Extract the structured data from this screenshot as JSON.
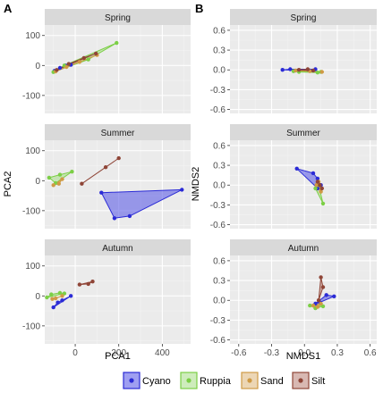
{
  "panel_labels": [
    "A",
    "B"
  ],
  "groups": [
    {
      "name": "Cyano",
      "color": "#2b2bd6",
      "fill": "#5050e6"
    },
    {
      "name": "Ruppia",
      "color": "#7ccf46",
      "fill": "#a6dc85"
    },
    {
      "name": "Sand",
      "color": "#cf9a45",
      "fill": "#ddb478"
    },
    {
      "name": "Silt",
      "color": "#8f4537",
      "fill": "#b87e72"
    }
  ],
  "chart_data": [
    {
      "type": "scatter",
      "panel": "A",
      "xlabel": "PCA1",
      "ylabel": "PCA2",
      "xlim": [
        -140,
        530
      ],
      "ylim": [
        -160,
        135
      ],
      "xticks": [
        0,
        200,
        400
      ],
      "yticks": [
        -100,
        0,
        100
      ],
      "grid": true,
      "facets": [
        {
          "title": "Spring",
          "hulls": [
            {
              "group": "Cyano",
              "points": [
                [
                  -95,
                  -18
                ],
                [
                  -70,
                  -8
                ],
                [
                  -45,
                  0
                ],
                [
                  -20,
                  2
                ]
              ]
            },
            {
              "group": "Ruppia",
              "points": [
                [
                  -100,
                  -22
                ],
                [
                  -50,
                  0
                ],
                [
                  60,
                  20
                ],
                [
                  190,
                  75
                ]
              ]
            },
            {
              "group": "Sand",
              "points": [
                [
                  -90,
                  -20
                ],
                [
                  -40,
                  -5
                ],
                [
                  20,
                  12
                ],
                [
                  100,
                  35
                ]
              ]
            },
            {
              "group": "Silt",
              "points": [
                [
                  -85,
                  -15
                ],
                [
                  -30,
                  5
                ],
                [
                  40,
                  25
                ],
                [
                  95,
                  40
                ]
              ]
            }
          ]
        },
        {
          "title": "Summer",
          "hulls": [
            {
              "group": "Cyano",
              "points": [
                [
                  120,
                  -40
                ],
                [
                  180,
                  -125
                ],
                [
                  250,
                  -118
                ],
                [
                  490,
                  -30
                ]
              ]
            },
            {
              "group": "Ruppia",
              "points": [
                [
                  -120,
                  10
                ],
                [
                  -90,
                  -8
                ],
                [
                  -70,
                  20
                ],
                [
                  -15,
                  30
                ]
              ]
            },
            {
              "group": "Sand",
              "points": [
                [
                  -100,
                  -15
                ],
                [
                  -75,
                  -10
                ],
                [
                  -60,
                  5
                ]
              ]
            },
            {
              "group": "Silt",
              "points": [
                [
                  30,
                  -10
                ],
                [
                  140,
                  45
                ],
                [
                  200,
                  75
                ]
              ]
            }
          ]
        },
        {
          "title": "Autumn",
          "hulls": [
            {
              "group": "Cyano",
              "points": [
                [
                  -100,
                  -38
                ],
                [
                  -80,
                  -22
                ],
                [
                  -20,
                  0
                ],
                [
                  -60,
                  -15
                ]
              ]
            },
            {
              "group": "Ruppia",
              "points": [
                [
                  -130,
                  -5
                ],
                [
                  -110,
                  5
                ],
                [
                  -70,
                  10
                ],
                [
                  -50,
                  8
                ]
              ]
            },
            {
              "group": "Sand",
              "points": [
                [
                  -105,
                  -10
                ],
                [
                  -90,
                  -8
                ],
                [
                  -60,
                  0
                ]
              ]
            },
            {
              "group": "Silt",
              "points": [
                [
                  20,
                  38
                ],
                [
                  60,
                  40
                ],
                [
                  80,
                  48
                ]
              ]
            }
          ]
        }
      ]
    },
    {
      "type": "scatter",
      "panel": "B",
      "xlabel": "NMDS1",
      "ylabel": "NMDS2",
      "xlim": [
        -0.68,
        0.66
      ],
      "ylim": [
        -0.66,
        0.68
      ],
      "xticks": [
        -0.6,
        -0.3,
        0.0,
        0.3,
        0.6
      ],
      "xtick_labels": [
        "-0.6",
        "-0.3",
        "0.0",
        "0.3",
        "0.6"
      ],
      "yticks": [
        -0.6,
        -0.3,
        0.0,
        0.3,
        0.6
      ],
      "ytick_labels": [
        "-0.6",
        "-0.3",
        "0.0",
        "0.3",
        "0.6"
      ],
      "grid": true,
      "facets": [
        {
          "title": "Spring",
          "hulls": [
            {
              "group": "Cyano",
              "points": [
                [
                  -0.2,
                  0.0
                ],
                [
                  -0.13,
                  0.01
                ],
                [
                  0.1,
                  0.01
                ],
                [
                  0.05,
                  -0.01
                ]
              ]
            },
            {
              "group": "Ruppia",
              "points": [
                [
                  -0.1,
                  -0.02
                ],
                [
                  -0.05,
                  -0.03
                ],
                [
                  0.12,
                  -0.04
                ],
                [
                  0.15,
                  -0.03
                ]
              ]
            },
            {
              "group": "Sand",
              "points": [
                [
                  -0.08,
                  -0.01
                ],
                [
                  0.05,
                  -0.02
                ],
                [
                  0.16,
                  -0.03
                ]
              ]
            },
            {
              "group": "Silt",
              "points": [
                [
                  -0.05,
                  0.0
                ],
                [
                  0.03,
                  0.01
                ],
                [
                  0.08,
                  -0.01
                ]
              ]
            }
          ]
        },
        {
          "title": "Summer",
          "hulls": [
            {
              "group": "Cyano",
              "points": [
                [
                  -0.07,
                  0.25
                ],
                [
                  0.08,
                  0.18
                ],
                [
                  0.12,
                  0.1
                ],
                [
                  0.12,
                  -0.05
                ],
                [
                  0.15,
                  0.0
                ]
              ]
            },
            {
              "group": "Ruppia",
              "points": [
                [
                  0.1,
                  -0.05
                ],
                [
                  0.13,
                  0.0
                ],
                [
                  0.17,
                  -0.28
                ]
              ]
            },
            {
              "group": "Sand",
              "points": [
                [
                  0.11,
                  0.0
                ],
                [
                  0.13,
                  0.05
                ],
                [
                  0.15,
                  -0.1
                ]
              ]
            },
            {
              "group": "Silt",
              "points": [
                [
                  0.12,
                  0.05
                ],
                [
                  0.14,
                  0.0
                ],
                [
                  0.16,
                  -0.05
                ]
              ]
            }
          ]
        },
        {
          "title": "Autumn",
          "hulls": [
            {
              "group": "Cyano",
              "points": [
                [
                  0.1,
                  -0.05
                ],
                [
                  0.2,
                  0.08
                ],
                [
                  0.27,
                  0.06
                ],
                [
                  0.14,
                  -0.03
                ]
              ]
            },
            {
              "group": "Ruppia",
              "points": [
                [
                  0.05,
                  -0.08
                ],
                [
                  0.1,
                  -0.12
                ],
                [
                  0.17,
                  -0.09
                ]
              ]
            },
            {
              "group": "Sand",
              "points": [
                [
                  0.08,
                  -0.08
                ],
                [
                  0.12,
                  -0.1
                ],
                [
                  0.15,
                  -0.05
                ]
              ]
            },
            {
              "group": "Silt",
              "points": [
                [
                  0.13,
                  0.0
                ],
                [
                  0.15,
                  0.35
                ],
                [
                  0.17,
                  0.2
                ]
              ]
            }
          ]
        }
      ]
    }
  ]
}
